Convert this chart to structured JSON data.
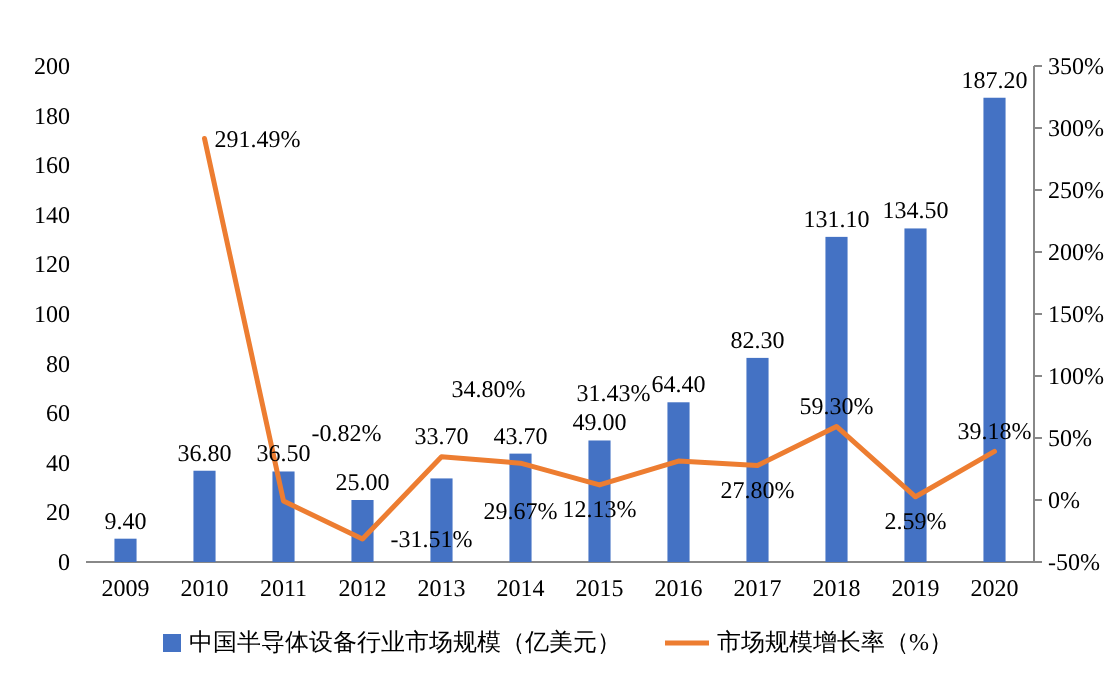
{
  "chart_data": {
    "type": "bar",
    "categories": [
      "2009",
      "2010",
      "2011",
      "2012",
      "2013",
      "2014",
      "2015",
      "2016",
      "2017",
      "2018",
      "2019",
      "2020"
    ],
    "series": [
      {
        "name": "中国半导体设备行业市场规模（亿美元）",
        "color": "#4472c4",
        "values": [
          9.4,
          36.8,
          36.5,
          25.0,
          33.7,
          43.7,
          49.0,
          64.4,
          82.3,
          131.1,
          134.5,
          187.2
        ],
        "value_labels": [
          "9.40",
          "36.80",
          "36.50",
          "25.00",
          "33.70",
          "43.70",
          "49.00",
          "64.40",
          "82.30",
          "131.10",
          "134.50",
          "187.20"
        ]
      },
      {
        "name": "市场规模增长率（%）",
        "type": "line",
        "axis": "y2",
        "color": "#ed7d31",
        "values": [
          null,
          291.49,
          -0.82,
          -31.51,
          34.8,
          29.67,
          12.13,
          31.43,
          27.8,
          59.3,
          2.59,
          39.18
        ],
        "value_labels": [
          null,
          "291.49%",
          "-0.82%",
          "-31.51%",
          "34.80%",
          "29.67%",
          "12.13%",
          "31.43%",
          "27.80%",
          "59.30%",
          "2.59%",
          "39.18%"
        ]
      }
    ],
    "ylim": [
      0,
      200
    ],
    "yticks": [
      0,
      20,
      40,
      60,
      80,
      100,
      120,
      140,
      160,
      180,
      200
    ],
    "y2lim": [
      -50,
      350
    ],
    "y2ticks": [
      {
        "value": -50,
        "label": "-50%"
      },
      {
        "value": 0,
        "label": "0%"
      },
      {
        "value": 50,
        "label": "50%"
      },
      {
        "value": 100,
        "label": "100%"
      },
      {
        "value": 150,
        "label": "150%"
      },
      {
        "value": 200,
        "label": "200%"
      },
      {
        "value": 250,
        "label": "250%"
      },
      {
        "value": 300,
        "label": "300%"
      },
      {
        "value": 350,
        "label": "350%"
      }
    ],
    "legend": "bottom"
  }
}
